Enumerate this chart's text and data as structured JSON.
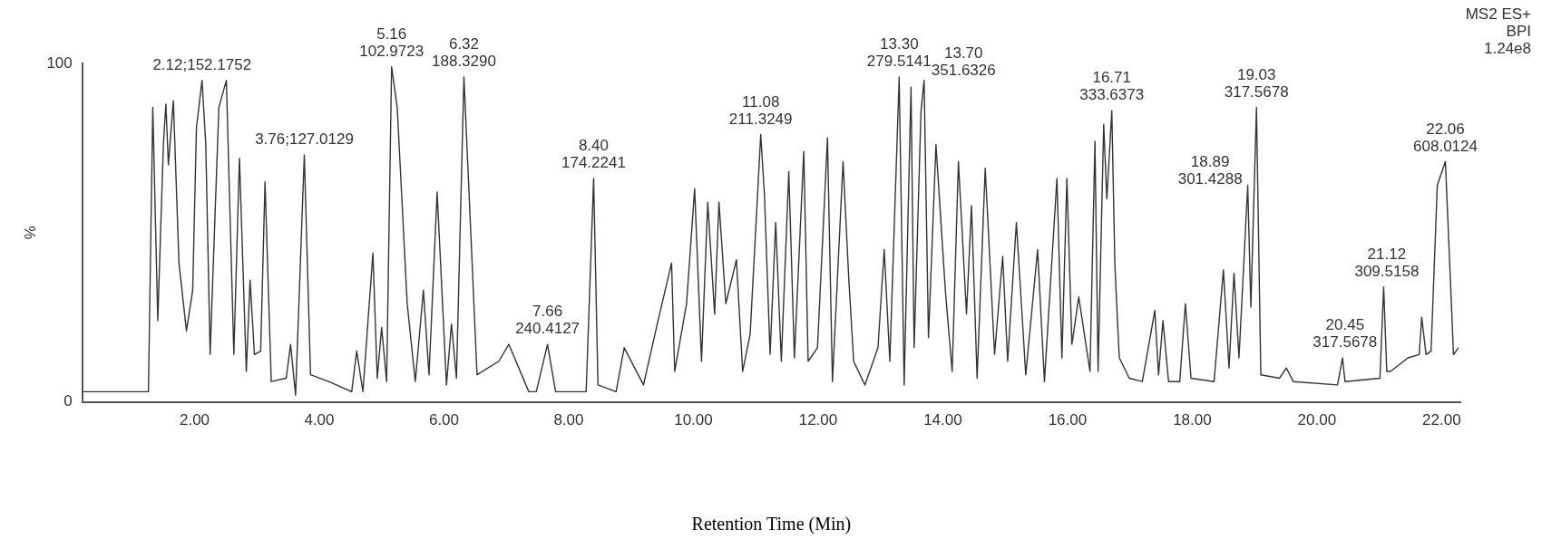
{
  "chart_data": {
    "type": "line",
    "xlabel": "Retention Time (Min)",
    "ylabel": "%",
    "xlim": [
      0.2,
      22.3
    ],
    "xticks": [
      {
        "value": 2,
        "label": "2.00"
      },
      {
        "value": 4,
        "label": "4.00"
      },
      {
        "value": 6,
        "label": "6.00"
      },
      {
        "value": 8,
        "label": "8.00"
      },
      {
        "value": 10,
        "label": "10.00"
      },
      {
        "value": 12,
        "label": "12.00"
      },
      {
        "value": 14,
        "label": "14.00"
      },
      {
        "value": 16,
        "label": "16.00"
      },
      {
        "value": 18,
        "label": "18.00"
      },
      {
        "value": 20,
        "label": "20.00"
      },
      {
        "value": 22,
        "label": "22.00"
      }
    ],
    "ylim": [
      0,
      100
    ],
    "yticks": [
      0,
      100
    ],
    "grid": false,
    "legend": false,
    "marker": "none",
    "line_style": "solid",
    "series": [
      {
        "color": "#333333",
        "x": [
          0.21,
          1.26,
          1.33,
          1.41,
          1.5,
          1.54,
          1.58,
          1.66,
          1.75,
          1.87,
          1.97,
          2.03,
          2.12,
          2.18,
          2.25,
          2.32,
          2.39,
          2.51,
          2.63,
          2.72,
          2.83,
          2.89,
          2.96,
          3.06,
          3.13,
          3.23,
          3.47,
          3.54,
          3.62,
          3.76,
          3.86,
          4.15,
          4.52,
          4.6,
          4.7,
          4.86,
          4.93,
          5.0,
          5.08,
          5.16,
          5.25,
          5.33,
          5.41,
          5.54,
          5.67,
          5.76,
          5.89,
          6.04,
          6.12,
          6.2,
          6.32,
          6.53,
          6.88,
          7.04,
          7.36,
          7.48,
          7.66,
          7.79,
          8.28,
          8.4,
          8.47,
          8.76,
          8.89,
          9.2,
          9.42,
          9.65,
          9.7,
          9.89,
          10.02,
          10.13,
          10.23,
          10.34,
          10.41,
          10.52,
          10.69,
          10.79,
          10.91,
          11.08,
          11.14,
          11.23,
          11.32,
          11.41,
          11.53,
          11.62,
          11.77,
          11.84,
          11.99,
          12.15,
          12.23,
          12.4,
          12.49,
          12.57,
          12.75,
          12.96,
          13.06,
          13.15,
          13.3,
          13.38,
          13.49,
          13.54,
          13.65,
          13.7,
          13.77,
          13.89,
          14.04,
          14.15,
          14.25,
          14.38,
          14.46,
          14.55,
          14.68,
          14.83,
          14.96,
          15.04,
          15.18,
          15.33,
          15.52,
          15.63,
          15.83,
          15.91,
          15.99,
          16.07,
          16.18,
          16.36,
          16.44,
          16.49,
          16.58,
          16.63,
          16.71,
          16.76,
          16.83,
          16.99,
          17.2,
          17.4,
          17.46,
          17.53,
          17.62,
          17.8,
          17.89,
          17.98,
          18.35,
          18.5,
          18.59,
          18.67,
          18.75,
          18.89,
          18.94,
          19.03,
          19.1,
          19.4,
          19.51,
          19.62,
          20.33,
          20.41,
          20.45,
          21.01,
          21.07,
          21.12,
          21.18,
          21.46,
          21.64,
          21.68,
          21.75,
          21.83,
          21.93,
          22.06,
          22.14,
          22.19,
          22.27
        ],
        "values": [
          3,
          3,
          87,
          24,
          76,
          88,
          70,
          89,
          41,
          21,
          33,
          81,
          95,
          76,
          14,
          51,
          87,
          95,
          14,
          72,
          9,
          36,
          14,
          15,
          65,
          6,
          7,
          17,
          2,
          73,
          8,
          6,
          3,
          15,
          3,
          44,
          7,
          22,
          6,
          99,
          87,
          58,
          29,
          6,
          33,
          8,
          62,
          5,
          23,
          7,
          96,
          8,
          12,
          17,
          3,
          3,
          17,
          3,
          3,
          66,
          5,
          3,
          16,
          5,
          23,
          41,
          9,
          29,
          63,
          12,
          59,
          26,
          59,
          29,
          42,
          9,
          20,
          79,
          61,
          14,
          53,
          12,
          68,
          13,
          74,
          12,
          16,
          78,
          6,
          71,
          37,
          12,
          5,
          16,
          45,
          12,
          96,
          5,
          93,
          16,
          86,
          95,
          19,
          76,
          33,
          9,
          71,
          26,
          58,
          7,
          69,
          14,
          43,
          12,
          53,
          8,
          45,
          6,
          66,
          13,
          66,
          17,
          31,
          9,
          77,
          9,
          82,
          60,
          86,
          40,
          13,
          7,
          6,
          27,
          8,
          24,
          6,
          6,
          29,
          7,
          6,
          39,
          10,
          38,
          13,
          64,
          28,
          87,
          8,
          7,
          10,
          6,
          5,
          13,
          6,
          7,
          34,
          9,
          9,
          13,
          14,
          25,
          14,
          15,
          64,
          71,
          36,
          14,
          16
        ]
      }
    ],
    "annotations": [
      "MS2 ES+",
      "BPI",
      "1.24e8",
      {
        "text": "2.12;152.1752",
        "x": 2.12,
        "y": 95
      },
      {
        "text": "3.76;127.0129",
        "x": 3.76,
        "y": 73
      },
      {
        "text": "5.16\n102.9723",
        "x": 5.16,
        "y": 99
      },
      {
        "text": "6.32\n188.3290",
        "x": 6.32,
        "y": 96
      },
      {
        "text": "7.66\n240.4127",
        "x": 7.66,
        "y": 17
      },
      {
        "text": "8.40\n174.2241",
        "x": 8.4,
        "y": 66
      },
      {
        "text": "11.08\n211.3249",
        "x": 11.08,
        "y": 79
      },
      {
        "text": "13.30\n279.5141",
        "x": 13.3,
        "y": 96
      },
      {
        "text": "13.70\n351.6326",
        "x": 13.7,
        "y": 95
      },
      {
        "text": "16.71\n333.6373",
        "x": 16.71,
        "y": 86
      },
      {
        "text": "18.89\n301.4288",
        "x": 18.89,
        "y": 64
      },
      {
        "text": "19.03\n317.5678",
        "x": 19.03,
        "y": 87
      },
      {
        "text": "20.45\n317.5678",
        "x": 20.45,
        "y": 13
      },
      {
        "text": "21.12\n309.5158",
        "x": 21.12,
        "y": 34
      },
      {
        "text": "22.06\n608.0124",
        "x": 22.06,
        "y": 71
      }
    ]
  }
}
